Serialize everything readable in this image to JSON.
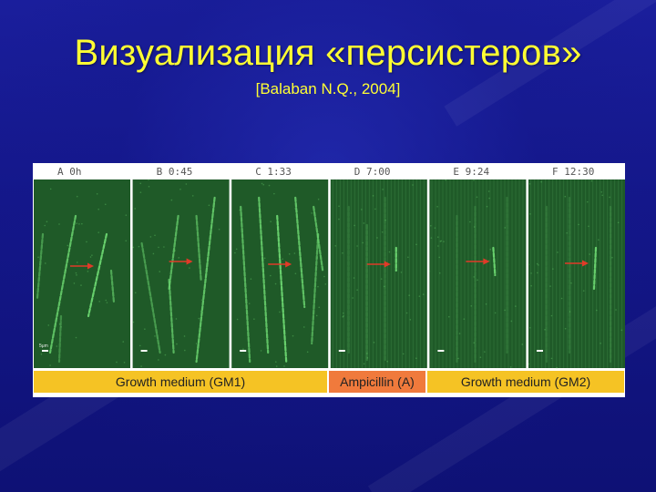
{
  "slide": {
    "title": "Визуализация «персистеров»",
    "subtitle": "[Balaban N.Q., 2004]"
  },
  "figure": {
    "panels": [
      {
        "letter": "A",
        "time": "0h"
      },
      {
        "letter": "B",
        "time": "0:45"
      },
      {
        "letter": "C",
        "time": "1:33"
      },
      {
        "letter": "D",
        "time": "7:00"
      },
      {
        "letter": "E",
        "time": "9:24"
      },
      {
        "letter": "F",
        "time": "12:30"
      }
    ],
    "scale_label": "5μm",
    "conditions": [
      {
        "label": "Growth medium (GM1)",
        "color": "#f5c324"
      },
      {
        "label": "Ampicillin (A)",
        "color": "#f07a3c"
      },
      {
        "label": "Growth medium (GM2)",
        "color": "#f5c324"
      }
    ],
    "arrow_color": "#e03a28",
    "panel_color": "#1f5a28",
    "cell_color": "#6fdc74"
  }
}
